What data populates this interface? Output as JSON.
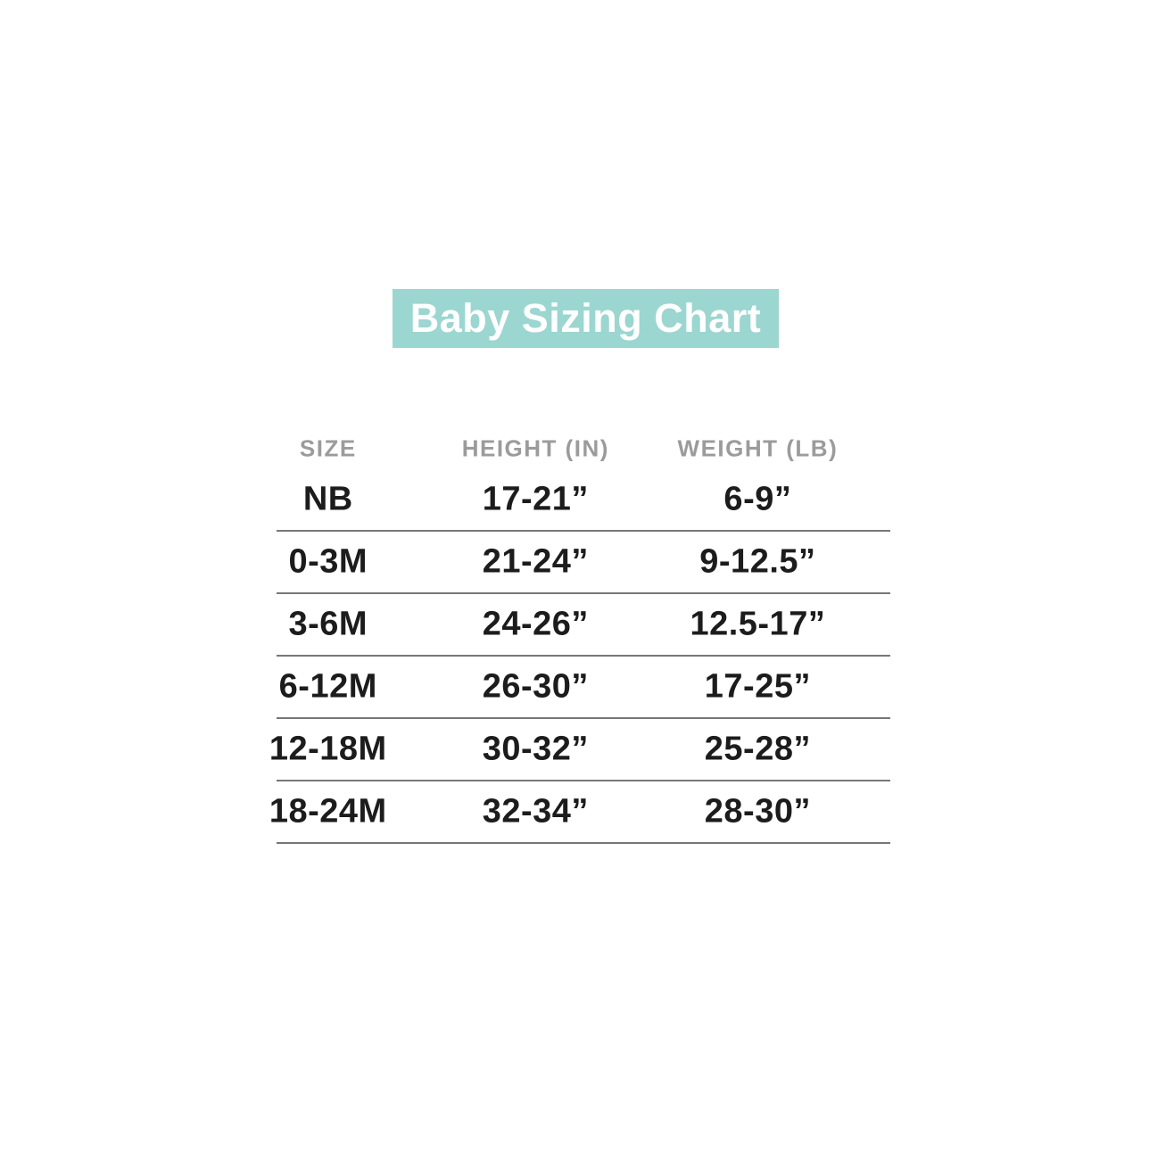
{
  "title": "Baby Sizing Chart",
  "colors": {
    "page_bg": "#ffffff",
    "banner_bg": "#9CD6D0",
    "banner_text": "#ffffff",
    "header_text": "#9B9B9B",
    "cell_text": "#1C1C1C",
    "divider": "#777777"
  },
  "chart_data": {
    "type": "table",
    "title": "Baby Sizing Chart",
    "columns": [
      "SIZE",
      "HEIGHT (IN)",
      "WEIGHT (LB)"
    ],
    "rows": [
      [
        "NB",
        "17-21”",
        "6-9”"
      ],
      [
        "0-3M",
        "21-24”",
        "9-12.5”"
      ],
      [
        "3-6M",
        "24-26”",
        "12.5-17”"
      ],
      [
        "6-12M",
        "26-30”",
        "17-25”"
      ],
      [
        "12-18M",
        "30-32”",
        "25-28”"
      ],
      [
        "18-24M",
        "32-34”",
        "28-30”"
      ]
    ],
    "layout": {
      "grid": "horizontal-dividers-only",
      "column_alignment": "center",
      "title_position": "top-banner"
    }
  }
}
